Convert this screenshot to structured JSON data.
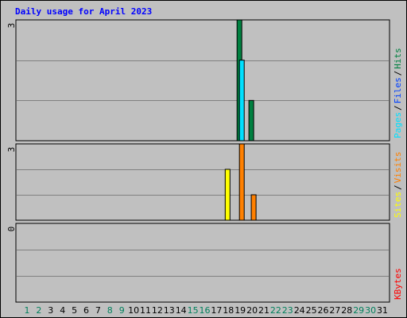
{
  "title": "Daily usage for April 2023",
  "chart_data": [
    {
      "type": "bar",
      "panel": "pages-files-hits",
      "ymax_label": "3",
      "ylim": [
        0,
        3
      ],
      "series": [
        {
          "name": "Hits",
          "color": "#008040",
          "points": [
            {
              "day": 19,
              "value": 3
            },
            {
              "day": 20,
              "value": 1
            }
          ]
        },
        {
          "name": "Files",
          "color": "#0040ff",
          "points": []
        },
        {
          "name": "Pages",
          "color": "#00e0ff",
          "points": [
            {
              "day": 19,
              "value": 2
            }
          ]
        }
      ],
      "legend_separators": [
        "/",
        "/"
      ]
    },
    {
      "type": "bar",
      "panel": "visits-sites",
      "ymax_label": "3",
      "ylim": [
        0,
        3
      ],
      "series": [
        {
          "name": "Visits",
          "color": "#ff8000",
          "points": [
            {
              "day": 19,
              "value": 3
            },
            {
              "day": 20,
              "value": 1
            }
          ]
        },
        {
          "name": "Sites",
          "color": "#ffff00",
          "points": [
            {
              "day": 18,
              "value": 2
            }
          ]
        }
      ],
      "legend_separators": [
        "/"
      ]
    },
    {
      "type": "bar",
      "panel": "kbytes",
      "ymax_label": "0",
      "ylim": [
        0,
        1
      ],
      "series": [
        {
          "name": "KBytes",
          "color": "#ff0000",
          "points": []
        }
      ]
    }
  ],
  "days": [
    "1",
    "2",
    "3",
    "4",
    "5",
    "6",
    "7",
    "8",
    "9",
    "10",
    "11",
    "12",
    "13",
    "14",
    "15",
    "16",
    "17",
    "18",
    "19",
    "20",
    "21",
    "22",
    "23",
    "24",
    "25",
    "26",
    "27",
    "28",
    "29",
    "30",
    "31"
  ],
  "weekend_days": [
    1,
    2,
    8,
    9,
    15,
    16,
    22,
    23,
    29,
    30
  ],
  "day_colors": {
    "weekday": "#000000",
    "weekend": "#00805c"
  }
}
